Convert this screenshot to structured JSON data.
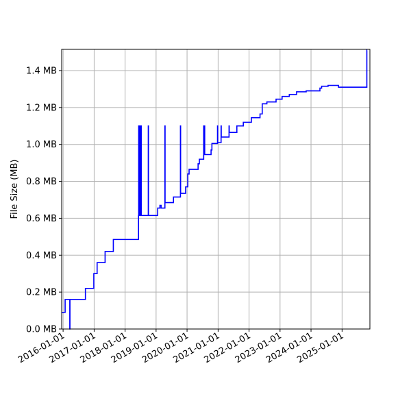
{
  "chart_data": {
    "type": "step",
    "y_label": "File Size (MB)",
    "xlim": [
      "2015-12-15",
      "2025-11-25"
    ],
    "xticks": [
      "2016-01-01",
      "2017-01-01",
      "2018-01-01",
      "2019-01-01",
      "2020-01-01",
      "2021-01-01",
      "2022-01-01",
      "2023-01-01",
      "2024-01-01",
      "2025-01-01"
    ],
    "ylim": [
      0,
      1.515
    ],
    "yticks": [
      {
        "value": 0,
        "label": "0.0 MB"
      },
      {
        "value": 0.2,
        "label": "0.2 MB"
      },
      {
        "value": 0.4,
        "label": "0.4 MB"
      },
      {
        "value": 0.6,
        "label": "0.6 MB"
      },
      {
        "value": 0.8,
        "label": "0.8 MB"
      },
      {
        "value": 1.0,
        "label": "1.0 MB"
      },
      {
        "value": 1.2,
        "label": "1.2 MB"
      },
      {
        "value": 1.4,
        "label": "1.4 MB"
      }
    ],
    "grid": true,
    "x": [
      "2015-12-15",
      "2016-01-25",
      "2016-03-20",
      "2016-03-22",
      "2016-09-20",
      "2016-12-28",
      "2017-02-05",
      "2017-05-10",
      "2017-08-15",
      "2018-06-08",
      "2018-06-10",
      "2018-06-15",
      "2018-06-20",
      "2018-06-25",
      "2018-07-05",
      "2018-07-10",
      "2018-10-01",
      "2018-10-03",
      "2019-01-20",
      "2019-02-15",
      "2019-03-01",
      "2019-04-15",
      "2019-04-17",
      "2019-07-25",
      "2019-10-15",
      "2019-10-17",
      "2019-12-15",
      "2020-01-10",
      "2020-01-25",
      "2020-05-10",
      "2020-05-25",
      "2020-07-15",
      "2020-07-17",
      "2020-07-25",
      "2020-07-27",
      "2020-10-10",
      "2020-10-20",
      "2020-12-25",
      "2020-12-27",
      "2021-02-05",
      "2021-02-07",
      "2021-05-10",
      "2021-05-12",
      "2021-08-10",
      "2021-10-25",
      "2022-01-28",
      "2022-05-10",
      "2022-06-05",
      "2022-07-30",
      "2022-11-15",
      "2023-01-25",
      "2023-04-20",
      "2023-07-15",
      "2023-11-05",
      "2024-04-15",
      "2024-05-05",
      "2024-07-20",
      "2024-11-20",
      "2025-10-20",
      "2025-10-25"
    ],
    "series": [
      {
        "name": "File Size",
        "color": "#0000ff",
        "values": [
          0.09,
          0.16,
          0,
          0.16,
          0.22,
          0.3,
          0.36,
          0.42,
          0.485,
          0.615,
          1.1,
          0.615,
          1.1,
          0.615,
          1.1,
          0.615,
          1.1,
          0.615,
          0.655,
          0.67,
          0.655,
          1.1,
          0.685,
          0.715,
          1.1,
          0.735,
          0.77,
          0.84,
          0.865,
          0.895,
          0.92,
          1.1,
          0.945,
          1.1,
          0.945,
          0.97,
          1.005,
          1.1,
          1.01,
          1.1,
          1.04,
          1.1,
          1.065,
          1.1,
          1.12,
          1.145,
          1.165,
          1.22,
          1.23,
          1.245,
          1.26,
          1.27,
          1.285,
          1.29,
          1.305,
          1.315,
          1.32,
          1.31,
          1.51,
          1.51
        ]
      }
    ]
  }
}
